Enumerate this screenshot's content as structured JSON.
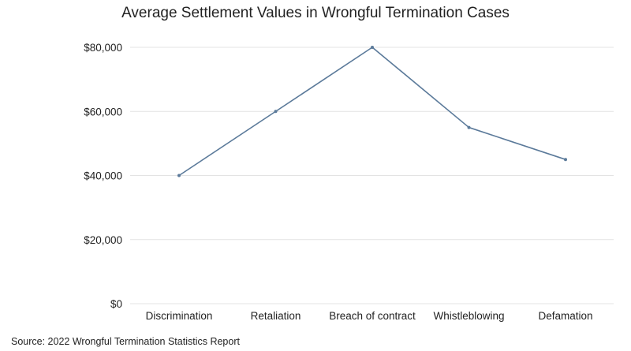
{
  "chart_data": {
    "type": "line",
    "title": "Average Settlement Values in Wrongful Termination Cases",
    "categories": [
      "Discrimination",
      "Retaliation",
      "Breach of contract",
      "Whistleblowing",
      "Defamation"
    ],
    "values": [
      40000,
      60000,
      80000,
      55000,
      45000
    ],
    "xlabel": "",
    "ylabel": "",
    "ylim": [
      0,
      80000
    ],
    "yticks": [
      0,
      20000,
      40000,
      60000,
      80000
    ],
    "ytick_labels": [
      "$0",
      "$20,000",
      "$40,000",
      "$60,000",
      "$80,000"
    ],
    "grid": true,
    "legend": "none",
    "line_color": "#5b7a9a",
    "grid_color": "#e3e3e3"
  },
  "source_note": "Source: 2022 Wrongful Termination Statistics Report"
}
